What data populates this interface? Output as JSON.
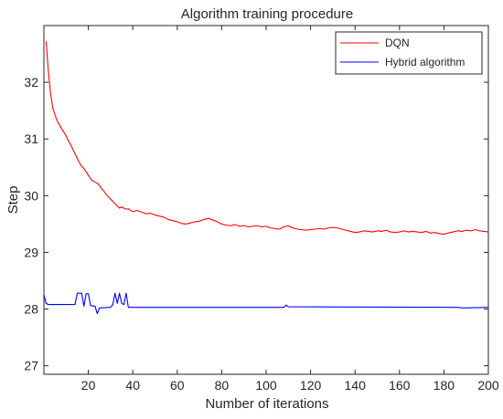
{
  "chart_data": {
    "type": "line",
    "title": "Algorithm training procedure",
    "xlabel": "Number of iterations",
    "ylabel": "Step",
    "xlim": [
      0,
      200
    ],
    "ylim": [
      26.85,
      33.0
    ],
    "xticks": [
      20,
      40,
      60,
      80,
      100,
      120,
      140,
      160,
      180,
      200
    ],
    "yticks": [
      27,
      28,
      29,
      30,
      31,
      32
    ],
    "grid": false,
    "legend_position": "top-right",
    "series": [
      {
        "name": "DQN",
        "color": "#ff0000",
        "points": [
          [
            1,
            32.72
          ],
          [
            2,
            32.2
          ],
          [
            3,
            31.8
          ],
          [
            4,
            31.55
          ],
          [
            5,
            31.42
          ],
          [
            6,
            31.32
          ],
          [
            7,
            31.25
          ],
          [
            8,
            31.18
          ],
          [
            9,
            31.12
          ],
          [
            10,
            31.05
          ],
          [
            11,
            30.97
          ],
          [
            12,
            30.9
          ],
          [
            13,
            30.82
          ],
          [
            14,
            30.74
          ],
          [
            15,
            30.66
          ],
          [
            16,
            30.58
          ],
          [
            17,
            30.52
          ],
          [
            18,
            30.48
          ],
          [
            19,
            30.42
          ],
          [
            20,
            30.36
          ],
          [
            21,
            30.3
          ],
          [
            22,
            30.26
          ],
          [
            23,
            30.24
          ],
          [
            24,
            30.22
          ],
          [
            25,
            30.18
          ],
          [
            26,
            30.12
          ],
          [
            27,
            30.08
          ],
          [
            28,
            30.02
          ],
          [
            29,
            29.98
          ],
          [
            30,
            29.94
          ],
          [
            31,
            29.9
          ],
          [
            32,
            29.86
          ],
          [
            33,
            29.82
          ],
          [
            34,
            29.78
          ],
          [
            35,
            29.8
          ],
          [
            36,
            29.78
          ],
          [
            37,
            29.76
          ],
          [
            38,
            29.77
          ],
          [
            39,
            29.74
          ],
          [
            40,
            29.72
          ],
          [
            42,
            29.74
          ],
          [
            44,
            29.71
          ],
          [
            46,
            29.68
          ],
          [
            48,
            29.69
          ],
          [
            50,
            29.66
          ],
          [
            52,
            29.64
          ],
          [
            54,
            29.62
          ],
          [
            56,
            29.58
          ],
          [
            58,
            29.56
          ],
          [
            60,
            29.54
          ],
          [
            62,
            29.51
          ],
          [
            64,
            29.5
          ],
          [
            66,
            29.52
          ],
          [
            68,
            29.54
          ],
          [
            70,
            29.55
          ],
          [
            72,
            29.58
          ],
          [
            74,
            29.6
          ],
          [
            76,
            29.57
          ],
          [
            78,
            29.54
          ],
          [
            80,
            29.5
          ],
          [
            82,
            29.48
          ],
          [
            84,
            29.47
          ],
          [
            86,
            29.49
          ],
          [
            88,
            29.46
          ],
          [
            90,
            29.47
          ],
          [
            92,
            29.45
          ],
          [
            94,
            29.46
          ],
          [
            96,
            29.47
          ],
          [
            98,
            29.45
          ],
          [
            100,
            29.46
          ],
          [
            102,
            29.43
          ],
          [
            104,
            29.42
          ],
          [
            106,
            29.41
          ],
          [
            108,
            29.45
          ],
          [
            110,
            29.47
          ],
          [
            112,
            29.43
          ],
          [
            114,
            29.41
          ],
          [
            116,
            29.4
          ],
          [
            118,
            29.39
          ],
          [
            120,
            29.4
          ],
          [
            122,
            29.41
          ],
          [
            124,
            29.42
          ],
          [
            126,
            29.41
          ],
          [
            128,
            29.43
          ],
          [
            130,
            29.44
          ],
          [
            132,
            29.43
          ],
          [
            134,
            29.41
          ],
          [
            136,
            29.39
          ],
          [
            138,
            29.37
          ],
          [
            140,
            29.35
          ],
          [
            142,
            29.36
          ],
          [
            144,
            29.38
          ],
          [
            146,
            29.37
          ],
          [
            148,
            29.36
          ],
          [
            150,
            29.38
          ],
          [
            152,
            29.37
          ],
          [
            154,
            29.39
          ],
          [
            156,
            29.36
          ],
          [
            158,
            29.35
          ],
          [
            160,
            29.36
          ],
          [
            162,
            29.38
          ],
          [
            164,
            29.36
          ],
          [
            166,
            29.37
          ],
          [
            168,
            29.36
          ],
          [
            170,
            29.35
          ],
          [
            172,
            29.37
          ],
          [
            174,
            29.34
          ],
          [
            176,
            29.35
          ],
          [
            178,
            29.33
          ],
          [
            180,
            29.32
          ],
          [
            182,
            29.34
          ],
          [
            184,
            29.36
          ],
          [
            186,
            29.38
          ],
          [
            188,
            29.37
          ],
          [
            190,
            29.39
          ],
          [
            192,
            29.38
          ],
          [
            194,
            29.4
          ],
          [
            196,
            29.38
          ],
          [
            198,
            29.37
          ],
          [
            200,
            29.36
          ]
        ]
      },
      {
        "name": "Hybrid algorithm",
        "color": "#0000ff",
        "points": [
          [
            0,
            28.25
          ],
          [
            1,
            28.1
          ],
          [
            2,
            28.08
          ],
          [
            14,
            28.08
          ],
          [
            15,
            28.28
          ],
          [
            17,
            28.28
          ],
          [
            18,
            28.05
          ],
          [
            19,
            28.27
          ],
          [
            20,
            28.27
          ],
          [
            21,
            28.06
          ],
          [
            23,
            28.05
          ],
          [
            24,
            27.92
          ],
          [
            25,
            28.02
          ],
          [
            30,
            28.03
          ],
          [
            31,
            28.08
          ],
          [
            32,
            28.28
          ],
          [
            33,
            28.1
          ],
          [
            34,
            28.28
          ],
          [
            35,
            28.1
          ],
          [
            36,
            28.08
          ],
          [
            37,
            28.28
          ],
          [
            38,
            28.03
          ],
          [
            108,
            28.03
          ],
          [
            109,
            28.07
          ],
          [
            110,
            28.04
          ],
          [
            186,
            28.03
          ],
          [
            188,
            28.02
          ],
          [
            200,
            28.03
          ]
        ]
      }
    ]
  }
}
